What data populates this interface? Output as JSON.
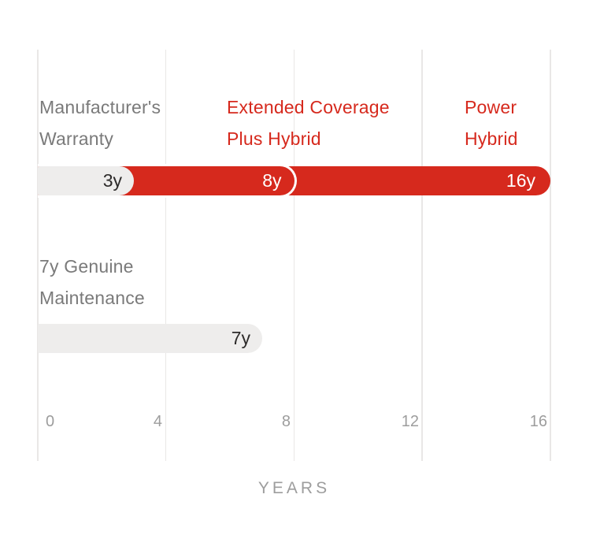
{
  "colors": {
    "accent_red": "#d6291d",
    "bar_gray": "#eeedec",
    "label_gray": "#7a7a7a",
    "tick_gray": "#9d9d9d",
    "gridline": "#e9e7e6",
    "bar_text_dark": "#2d2b2a",
    "bar_text_light": "#ffffff"
  },
  "chart_data": {
    "type": "bar",
    "orientation": "horizontal",
    "title": "",
    "xlabel": "YEARS",
    "ylabel": "",
    "xlim": [
      0,
      16
    ],
    "grid": "vertical-on",
    "x_ticks": [
      "0",
      "4",
      "8",
      "12",
      "16"
    ],
    "x_tick_values": [
      0,
      4,
      8,
      12,
      16
    ],
    "rows": [
      {
        "name": "warranty-coverage-row",
        "segments": [
          {
            "label_line1": "Manufacturer's",
            "label_line2": "Warranty",
            "label": "Manufacturer's Warranty",
            "value_years": 3,
            "value_label": "3y",
            "color": "#eeedec",
            "label_color": "#7a7a7a"
          },
          {
            "label_line1": "Extended Coverage",
            "label_line2": "Plus Hybrid",
            "label": "Extended Coverage Plus Hybrid",
            "value_years": 8,
            "value_label": "8y",
            "color": "#d6291d",
            "label_color": "#d6291d"
          },
          {
            "label_line1": "Power",
            "label_line2": "Hybrid",
            "label": "Power Hybrid",
            "value_years": 16,
            "value_label": "16y",
            "color": "#d6291d",
            "label_color": "#d6291d"
          }
        ]
      },
      {
        "name": "maintenance-row",
        "segments": [
          {
            "label_line1": "7y Genuine",
            "label_line2": "Maintenance",
            "label": "7y Genuine Maintenance",
            "value_years": 7,
            "value_label": "7y",
            "color": "#eeedec",
            "label_color": "#7a7a7a"
          }
        ]
      }
    ]
  }
}
